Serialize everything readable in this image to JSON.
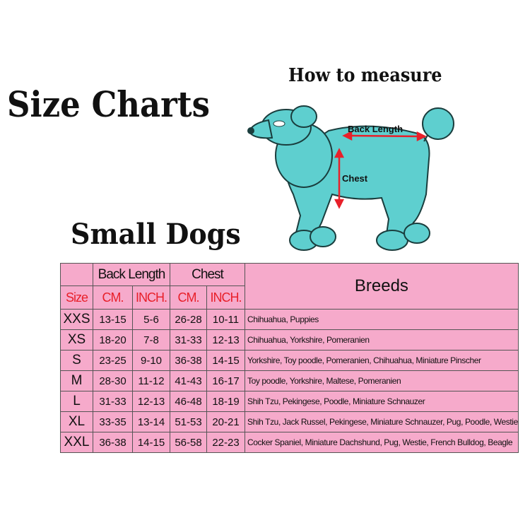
{
  "title": "Size Charts",
  "subtitle": "Small Dogs",
  "illustration": {
    "heading": "How to measure",
    "back_label": "Back Length",
    "chest_label": "Chest",
    "dog_color": "#5ecfcf",
    "arrow_color": "#e8202a"
  },
  "table": {
    "group_headers": [
      "Back Length",
      "Chest"
    ],
    "sub_headers": [
      "Size",
      "CM.",
      "INCH.",
      "CM.",
      "INCH."
    ],
    "breeds_header": "Breeds",
    "rows": [
      {
        "size": "XXS",
        "back_cm": "13-15",
        "back_in": "5-6",
        "chest_cm": "26-28",
        "chest_in": "10-11",
        "breeds": "Chihuahua, Puppies"
      },
      {
        "size": "XS",
        "back_cm": "18-20",
        "back_in": "7-8",
        "chest_cm": "31-33",
        "chest_in": "12-13",
        "breeds": "Chihuahua, Yorkshire, Pomeranien"
      },
      {
        "size": "S",
        "back_cm": "23-25",
        "back_in": "9-10",
        "chest_cm": "36-38",
        "chest_in": "14-15",
        "breeds": "Yorkshire, Toy poodle, Pomeranien, Chihuahua, Miniature Pinscher"
      },
      {
        "size": "M",
        "back_cm": "28-30",
        "back_in": "11-12",
        "chest_cm": "41-43",
        "chest_in": "16-17",
        "breeds": "Toy poodle, Yorkshire, Maltese, Pomeranien"
      },
      {
        "size": "L",
        "back_cm": "31-33",
        "back_in": "12-13",
        "chest_cm": "46-48",
        "chest_in": "18-19",
        "breeds": "Shih Tzu, Pekingese, Poodle, Miniature Schnauzer"
      },
      {
        "size": "XL",
        "back_cm": "33-35",
        "back_in": "13-14",
        "chest_cm": "51-53",
        "chest_in": "20-21",
        "breeds": "Shih Tzu, Jack Russel, Pekingese, Miniature Schnauzer, Pug, Poodle, Westie"
      },
      {
        "size": "XXL",
        "back_cm": "36-38",
        "back_in": "14-15",
        "chest_cm": "56-58",
        "chest_in": "22-23",
        "breeds": "Cocker Spaniel, Miniature Dachshund, Pug, Westie, French Bulldog, Beagle"
      }
    ]
  }
}
